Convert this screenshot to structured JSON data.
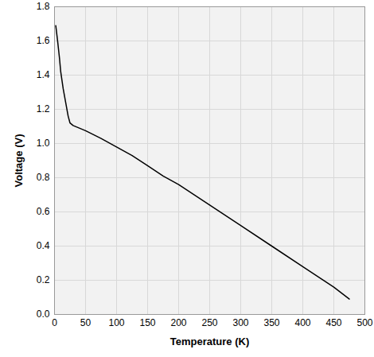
{
  "chart_data": {
    "type": "line",
    "x_label": "Temperature (K)",
    "y_label": "Voltage (V)",
    "x": [
      2,
      5,
      8,
      10,
      14,
      18,
      22,
      25,
      30,
      40,
      50,
      75,
      100,
      125,
      150,
      175,
      200,
      250,
      300,
      350,
      400,
      450,
      475
    ],
    "values": [
      1.69,
      1.6,
      1.5,
      1.42,
      1.32,
      1.24,
      1.16,
      1.12,
      1.105,
      1.09,
      1.075,
      1.03,
      0.98,
      0.93,
      0.87,
      0.81,
      0.76,
      0.64,
      0.52,
      0.4,
      0.28,
      0.16,
      0.09
    ],
    "color": "#000000",
    "xlim": [
      0,
      500
    ],
    "xticks": [
      0,
      50,
      100,
      150,
      200,
      250,
      300,
      350,
      400,
      450,
      500
    ],
    "ylim": [
      0,
      1.8
    ],
    "yticks": [
      {
        "value": 0,
        "label": "0.0"
      },
      0.2,
      0.4,
      0.6,
      0.8,
      {
        "value": 1,
        "label": "1.0"
      },
      1.2,
      1.4,
      1.6,
      1.8
    ],
    "grid": true
  }
}
